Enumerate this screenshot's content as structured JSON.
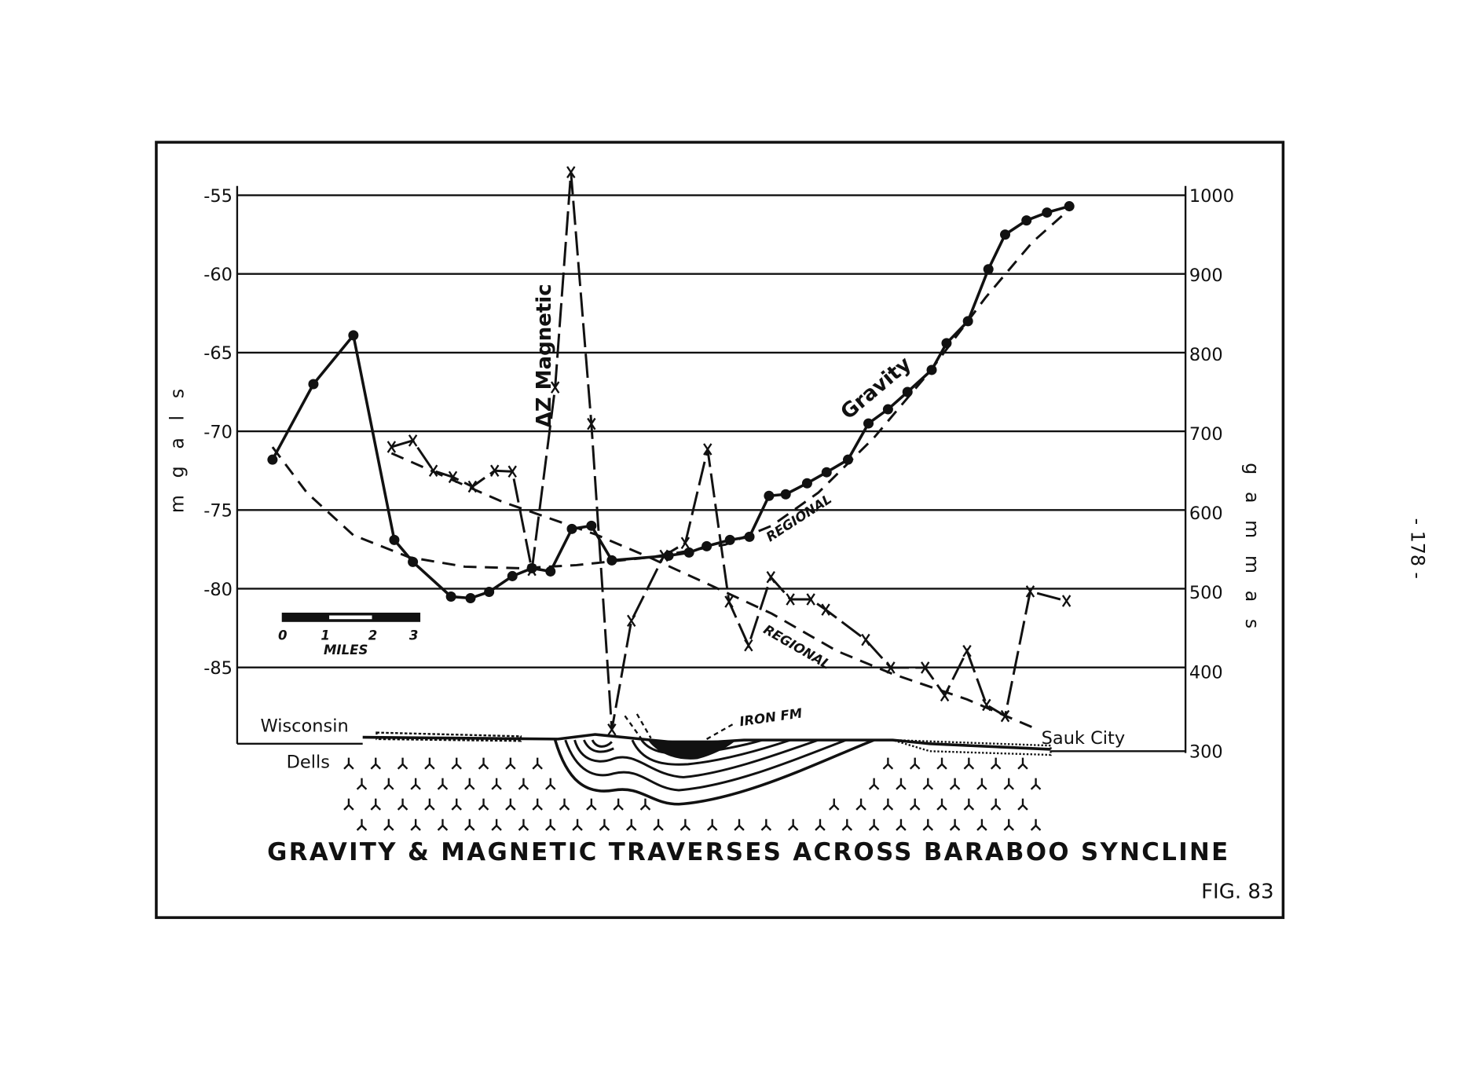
{
  "page_number": "- 178 -",
  "chart_data": {
    "type": "line",
    "title": "GRAVITY & MAGNETIC TRAVERSES ACROSS BARABOO SYNCLINE",
    "figure_label": "FIG. 83",
    "xlabel": "",
    "ylabel_left": "m g a l s",
    "ylabel_right": "g a m m a s",
    "ylim_left": [
      -88,
      -55
    ],
    "ylim_right": [
      300,
      1000
    ],
    "yticks_left": [
      "-55",
      "-60",
      "-65",
      "-70",
      "-75",
      "-80",
      "-85"
    ],
    "yticks_right": [
      "1000",
      "900",
      "800",
      "700",
      "600",
      "500",
      "400",
      "300"
    ],
    "grid": true,
    "scale_bar": {
      "ticks": [
        "0",
        "1",
        "2",
        "3"
      ],
      "unit_label": "MILES"
    },
    "endpoints": {
      "left": "Wisconsin Dells",
      "left_line1": "Wisconsin",
      "left_line2": "Dells",
      "right": "Sauk City"
    },
    "cross_section_label": "IRON FM",
    "series": [
      {
        "name": "Gravity",
        "axis": "left",
        "marker": "dot",
        "style": "solid",
        "x": [
          0,
          0.88,
          1.74,
          2.62,
          3.02,
          3.84,
          4.26,
          4.66,
          5.16,
          5.58,
          5.98,
          6.44,
          6.86,
          7.3,
          8.52,
          8.96,
          9.34,
          9.84,
          10.26,
          10.68,
          11.04,
          11.5,
          11.92,
          12.38,
          12.82,
          13.24,
          13.66,
          14.18,
          14.5,
          14.96,
          15.4,
          15.76,
          16.22,
          16.66,
          17.14
        ],
        "y": [
          -71.8,
          -67.0,
          -63.9,
          -76.9,
          -78.3,
          -80.5,
          -80.6,
          -80.2,
          -79.2,
          -78.7,
          -78.9,
          -76.2,
          -76.0,
          -78.2,
          -77.9,
          -77.7,
          -77.3,
          -76.9,
          -76.7,
          -74.1,
          -74.0,
          -73.3,
          -72.6,
          -71.8,
          -69.5,
          -68.6,
          -67.5,
          -66.1,
          -64.4,
          -63.0,
          -59.7,
          -57.5,
          -56.6,
          -56.1,
          -55.7
        ]
      },
      {
        "name": "ΔZ Magnetic",
        "axis": "right",
        "marker": "x",
        "style": "long-dash",
        "x": [
          2.56,
          3.02,
          3.46,
          3.88,
          4.3,
          4.78,
          5.16,
          5.58,
          6.08,
          6.42,
          6.86,
          7.3,
          7.72,
          8.42,
          8.88,
          9.36,
          9.82,
          10.24,
          10.72,
          11.14,
          11.58,
          11.9,
          12.76,
          13.3,
          14.04,
          14.46,
          14.94,
          15.36,
          15.76,
          16.3,
          17.08
        ],
        "y": [
          683,
          691,
          653,
          645,
          633,
          653,
          652,
          528,
          758,
          1029,
          712,
          327,
          464,
          546,
          562,
          680,
          488,
          433,
          519,
          491,
          491,
          478,
          440,
          405,
          405,
          370,
          426,
          358,
          344,
          501,
          489
        ]
      },
      {
        "name": "REGIONAL",
        "axis": "left",
        "marker": "none",
        "style": "dashed",
        "of": "Gravity",
        "x": [
          0,
          0.74,
          1.74,
          2.94,
          4.14,
          5.34,
          6.54,
          8.14,
          9.74,
          10.74,
          11.74,
          12.94,
          14.14,
          15.34,
          16.34,
          17.14
        ],
        "y": [
          -71.0,
          -73.9,
          -76.6,
          -78.0,
          -78.6,
          -78.7,
          -78.5,
          -78.0,
          -77.2,
          -76.0,
          -73.9,
          -70.4,
          -66.2,
          -61.5,
          -58.0,
          -55.9
        ]
      },
      {
        "name": "REGIONAL",
        "axis": "right",
        "marker": "none",
        "style": "dashed",
        "of": "ΔZ Magnetic",
        "x": [
          2.56,
          4.94,
          6.94,
          8.14,
          9.34,
          10.74,
          12.14,
          13.34,
          14.94,
          16.34
        ],
        "y": [
          675,
          614,
          573,
          543,
          511,
          473,
          426,
          397,
          365,
          330
        ]
      }
    ],
    "colors": {
      "ink": "#111111",
      "paper": "#ffffff"
    }
  }
}
